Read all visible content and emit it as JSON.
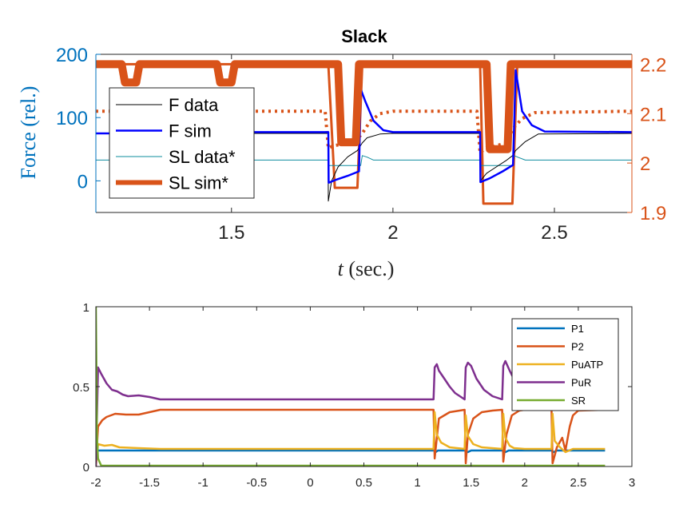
{
  "chart_data": [
    {
      "type": "line",
      "title": "Slack",
      "xlabel_var": "t",
      "xlabel_unit": " (sec.)",
      "ylabel": "Force (rel.)",
      "xlim": [
        1.08,
        2.74
      ],
      "ylim_left": [
        -50,
        200
      ],
      "ylim_right": [
        1.9,
        2.22
      ],
      "xticks": [
        1.5,
        2,
        2.5
      ],
      "xtick_labels": [
        "1.5",
        "2",
        "2.5"
      ],
      "yticks_left": [
        0,
        100,
        200
      ],
      "ytick_labels_left": [
        "0",
        "100",
        "200"
      ],
      "yticks_right": [
        1.9,
        2,
        2.1,
        2.2
      ],
      "ytick_labels_right": [
        "1.9",
        "2",
        "2.1",
        "2.2"
      ],
      "legend_position": "top-left",
      "colors": {
        "left_axis": "#0072BD",
        "right_axis": "#D95319"
      },
      "series": [
        {
          "name": "F data",
          "axis": "left",
          "color": "#000000",
          "x": [
            1.08,
            1.2,
            1.5,
            1.799,
            1.8,
            1.81,
            1.83,
            1.86,
            1.89,
            1.905,
            1.92,
            1.96,
            2.0,
            2.27,
            2.271,
            2.29,
            2.32,
            2.35,
            2.371,
            2.38,
            2.41,
            2.45,
            2.74
          ],
          "values": [
            75,
            75,
            75,
            75,
            -32,
            0,
            22,
            38,
            48,
            60,
            68,
            74,
            75,
            75,
            0,
            12,
            22,
            32,
            40,
            48,
            62,
            74,
            75
          ]
        },
        {
          "name": "F sim",
          "axis": "left",
          "color": "#0000FF",
          "x": [
            1.08,
            1.2,
            1.5,
            1.53,
            1.54,
            1.56,
            1.8,
            1.801,
            1.82,
            1.86,
            1.895,
            1.9,
            1.915,
            1.94,
            1.97,
            2.0,
            2.27,
            2.271,
            2.3,
            2.34,
            2.372,
            2.38,
            2.4,
            2.43,
            2.47,
            2.74
          ],
          "values": [
            75,
            75,
            75,
            75,
            85,
            77,
            77,
            -3,
            1,
            8,
            15,
            145,
            125,
            95,
            80,
            77,
            77,
            -2,
            4,
            15,
            25,
            175,
            110,
            88,
            78,
            77
          ]
        },
        {
          "name": "SL data*",
          "axis": "right",
          "color": "#0E8C9E",
          "x": [
            1.08,
            1.8,
            1.801,
            1.9,
            1.905,
            1.92,
            1.94,
            2.27,
            2.271,
            2.37,
            2.375,
            2.39,
            2.41,
            2.74
          ],
          "values": [
            2.006,
            2.006,
            1.995,
            1.995,
            2.015,
            2.012,
            2.006,
            2.006,
            1.995,
            1.995,
            2.015,
            2.011,
            2.006,
            2.006
          ]
        },
        {
          "name": "SL sim*",
          "axis": "right",
          "color": "#D95319",
          "x": [
            1.08,
            1.16,
            1.17,
            1.205,
            1.215,
            1.455,
            1.465,
            1.5,
            1.51,
            1.83,
            1.84,
            1.885,
            1.895,
            2.29,
            2.3,
            2.355,
            2.365,
            2.74
          ],
          "values": [
            2.2,
            2.2,
            2.163,
            2.163,
            2.2,
            2.2,
            2.163,
            2.163,
            2.2,
            2.2,
            2.042,
            2.042,
            2.2,
            2.2,
            2.028,
            2.028,
            2.2,
            2.2
          ]
        },
        {
          "axis": "right",
          "color": "#D95319",
          "style": "dotted",
          "x": [
            1.08,
            1.2,
            1.5,
            1.79,
            1.8,
            1.815,
            1.88,
            1.905,
            1.93,
            1.96,
            2.0,
            2.26,
            2.27,
            2.285,
            2.35,
            2.372,
            2.4,
            2.44,
            2.74
          ],
          "values": [
            2.105,
            2.105,
            2.105,
            2.105,
            2.03,
            2.035,
            2.042,
            2.06,
            2.085,
            2.1,
            2.105,
            2.105,
            2.02,
            2.03,
            2.04,
            2.07,
            2.09,
            2.102,
            2.105
          ]
        },
        {
          "axis": "right",
          "color": "#D95319",
          "style": "thin",
          "x": [
            1.08,
            1.8,
            1.82,
            1.89,
            1.905,
            2.27,
            2.28,
            2.37,
            2.385,
            2.74
          ],
          "values": [
            2.2,
            2.2,
            1.95,
            1.95,
            2.2,
            2.2,
            1.918,
            1.918,
            2.2,
            2.2
          ]
        }
      ]
    },
    {
      "type": "line",
      "title": "",
      "xlim": [
        -2,
        3
      ],
      "ylim": [
        0,
        1
      ],
      "xticks": [
        -2,
        -1.5,
        -1,
        -0.5,
        0,
        0.5,
        1,
        1.5,
        2,
        2.5,
        3
      ],
      "xtick_labels": [
        "-2",
        "-1.5",
        "-1",
        "-0.5",
        "0",
        "0.5",
        "1",
        "1.5",
        "2",
        "2.5",
        "3"
      ],
      "yticks": [
        0,
        0.5,
        1
      ],
      "ytick_labels": [
        "0",
        "0.5",
        "1"
      ],
      "legend_position": "top-right",
      "series": [
        {
          "name": "P1",
          "color": "#0072BD",
          "x": [
            -2,
            -1.99,
            -1.97,
            -1.9,
            1.16,
            1.17,
            1.19,
            1.3,
            1.45,
            1.47,
            1.5,
            1.8,
            1.82,
            1.85,
            2.25,
            2.27,
            2.3,
            2.4,
            2.75
          ],
          "values": [
            0,
            0.1,
            0.1,
            0.1,
            0.1,
            0.09,
            0.1,
            0.1,
            0.1,
            0.09,
            0.1,
            0.1,
            0.09,
            0.1,
            0.1,
            0.09,
            0.1,
            0.1,
            0.1
          ]
        },
        {
          "name": "P2",
          "color": "#D95319",
          "x": [
            -2,
            -1.98,
            -1.94,
            -1.9,
            -1.82,
            -1.72,
            -1.6,
            -1.4,
            1.15,
            1.16,
            1.2,
            1.3,
            1.44,
            1.45,
            1.47,
            1.52,
            1.6,
            1.7,
            1.79,
            1.8,
            1.83,
            1.88,
            1.95,
            2.0,
            2.2,
            2.22,
            2.25,
            2.26,
            2.3,
            2.35,
            2.38,
            2.42,
            2.45,
            2.5,
            2.75
          ],
          "values": [
            0,
            0.25,
            0.29,
            0.31,
            0.33,
            0.325,
            0.325,
            0.355,
            0.355,
            0.05,
            0.3,
            0.34,
            0.355,
            0.02,
            0.2,
            0.3,
            0.34,
            0.35,
            0.355,
            0.03,
            0.2,
            0.32,
            0.35,
            0.355,
            0.355,
            0.355,
            0.355,
            0.02,
            0.12,
            0.18,
            0.1,
            0.25,
            0.32,
            0.35,
            0.355
          ]
        },
        {
          "name": "PuATP",
          "color": "#EDB120",
          "x": [
            -2,
            -1.98,
            -1.92,
            -1.85,
            -1.78,
            -1.6,
            -1.4,
            1.15,
            1.16,
            1.18,
            1.22,
            1.3,
            1.44,
            1.45,
            1.47,
            1.52,
            1.6,
            1.79,
            1.8,
            1.82,
            1.86,
            1.9,
            2.0,
            2.25,
            2.26,
            2.28,
            2.33,
            2.38,
            2.45,
            2.75
          ],
          "values": [
            0,
            0.14,
            0.13,
            0.135,
            0.12,
            0.115,
            0.11,
            0.11,
            0.34,
            0.2,
            0.15,
            0.12,
            0.11,
            0.32,
            0.19,
            0.14,
            0.12,
            0.11,
            0.33,
            0.18,
            0.13,
            0.115,
            0.11,
            0.11,
            0.33,
            0.16,
            0.12,
            0.09,
            0.11,
            0.11
          ]
        },
        {
          "name": "PuR",
          "color": "#7E2F8E",
          "x": [
            -2,
            -1.98,
            -1.95,
            -1.9,
            -1.85,
            -1.8,
            -1.75,
            -1.7,
            -1.6,
            -1.5,
            -1.4,
            1.15,
            1.16,
            1.18,
            1.2,
            1.25,
            1.3,
            1.35,
            1.44,
            1.45,
            1.47,
            1.5,
            1.55,
            1.62,
            1.7,
            1.79,
            1.8,
            1.82,
            1.86,
            1.92,
            2.0,
            2.75
          ],
          "values": [
            0,
            0.62,
            0.58,
            0.52,
            0.48,
            0.47,
            0.45,
            0.44,
            0.445,
            0.435,
            0.42,
            0.42,
            0.62,
            0.64,
            0.6,
            0.55,
            0.5,
            0.46,
            0.42,
            0.62,
            0.65,
            0.63,
            0.55,
            0.48,
            0.44,
            0.42,
            0.63,
            0.66,
            0.6,
            0.52,
            0.46,
            0.46
          ]
        },
        {
          "name": "SR",
          "color": "#77AC30",
          "x": [
            -2,
            -1.995,
            -1.99,
            -1.98,
            -1.95,
            2.75
          ],
          "values": [
            1.0,
            0.6,
            0.2,
            0.05,
            0.005,
            0.005
          ]
        }
      ]
    }
  ]
}
